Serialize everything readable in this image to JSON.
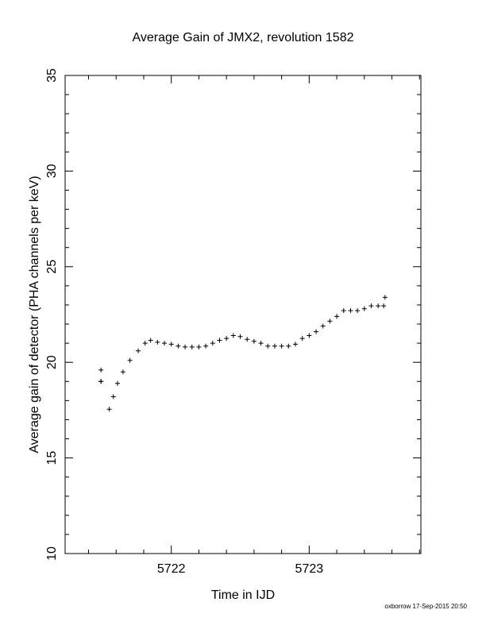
{
  "chart_data": {
    "type": "scatter",
    "title": "Average Gain of JMX2, revolution 1582",
    "xlabel": "Time in IJD",
    "ylabel": "Average gain of detector (PHA channels per keV)",
    "xlim": [
      5721.23,
      5723.81
    ],
    "ylim": [
      10,
      35
    ],
    "x_ticks": [
      5722,
      5723
    ],
    "x_tick_labels": [
      "5722",
      "5723"
    ],
    "y_ticks": [
      10,
      15,
      20,
      25,
      30,
      35
    ],
    "y_tick_labels": [
      "10",
      "15",
      "20",
      "25",
      "30",
      "35"
    ],
    "grid": false,
    "marker": "+",
    "color": "#000000",
    "points": [
      [
        5721.49,
        19.6
      ],
      [
        5721.49,
        19.0
      ],
      [
        5721.49,
        19.0
      ],
      [
        5721.55,
        17.55
      ],
      [
        5721.58,
        18.2
      ],
      [
        5721.61,
        18.9
      ],
      [
        5721.65,
        19.5
      ],
      [
        5721.7,
        20.1
      ],
      [
        5721.76,
        20.6
      ],
      [
        5721.81,
        21.0
      ],
      [
        5721.85,
        21.15
      ],
      [
        5721.9,
        21.05
      ],
      [
        5721.95,
        21.0
      ],
      [
        5722.0,
        20.95
      ],
      [
        5722.05,
        20.85
      ],
      [
        5722.1,
        20.8
      ],
      [
        5722.15,
        20.8
      ],
      [
        5722.2,
        20.8
      ],
      [
        5722.25,
        20.85
      ],
      [
        5722.3,
        21.0
      ],
      [
        5722.35,
        21.15
      ],
      [
        5722.4,
        21.25
      ],
      [
        5722.45,
        21.4
      ],
      [
        5722.5,
        21.35
      ],
      [
        5722.55,
        21.2
      ],
      [
        5722.6,
        21.1
      ],
      [
        5722.65,
        21.0
      ],
      [
        5722.7,
        20.85
      ],
      [
        5722.75,
        20.85
      ],
      [
        5722.8,
        20.85
      ],
      [
        5722.85,
        20.85
      ],
      [
        5722.9,
        20.95
      ],
      [
        5722.95,
        21.25
      ],
      [
        5723.0,
        21.4
      ],
      [
        5723.05,
        21.6
      ],
      [
        5723.1,
        21.9
      ],
      [
        5723.15,
        22.15
      ],
      [
        5723.2,
        22.4
      ],
      [
        5723.25,
        22.7
      ],
      [
        5723.3,
        22.7
      ],
      [
        5723.35,
        22.7
      ],
      [
        5723.4,
        22.8
      ],
      [
        5723.45,
        22.95
      ],
      [
        5723.5,
        22.95
      ],
      [
        5723.54,
        22.95
      ],
      [
        5723.55,
        23.4
      ]
    ]
  },
  "footer": "oxborrow 17-Sep-2015 20:50"
}
